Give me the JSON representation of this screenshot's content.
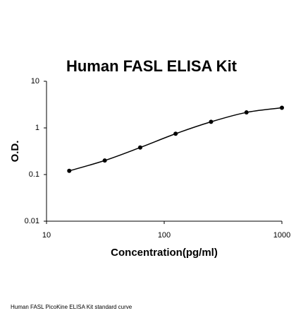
{
  "chart_data": {
    "type": "scatter",
    "title": "Human FASL ELISA Kit",
    "x_label": "Concentration(pg/ml)",
    "y_label": "O.D.",
    "caption": "Human FASL PicoKine ELISA Kit standard curve",
    "x": [
      15.6,
      31.25,
      62.5,
      125,
      250,
      500,
      1000
    ],
    "values": [
      0.12,
      0.2,
      0.38,
      0.75,
      1.35,
      2.15,
      2.7
    ],
    "color": "#000000",
    "curve": true,
    "xscale": "log",
    "yscale": "log",
    "xlim": [
      10,
      1000
    ],
    "ylim": [
      0.01,
      10
    ],
    "xticks": [
      10,
      100,
      1000
    ],
    "yticks": [
      0.01,
      0.1,
      1,
      10
    ]
  }
}
